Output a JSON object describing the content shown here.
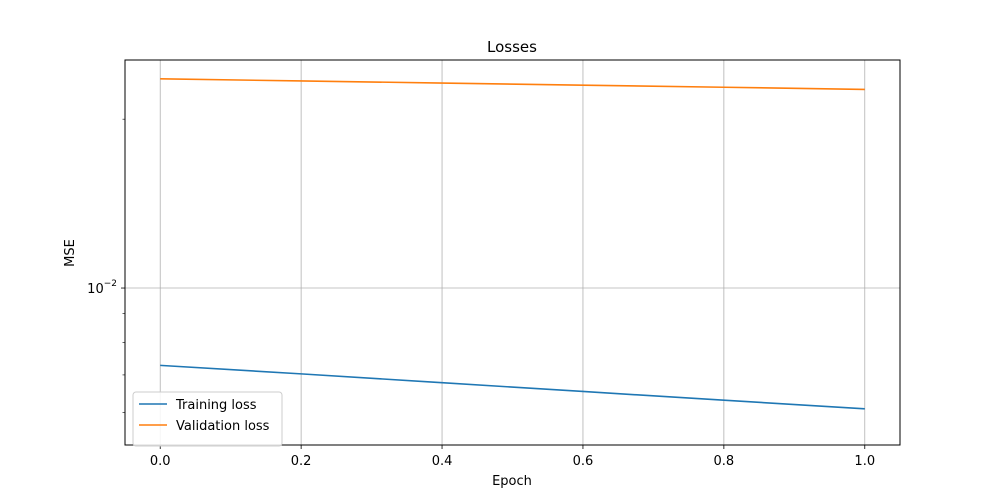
{
  "chart_data": {
    "type": "line",
    "title": "Losses",
    "xlabel": "Epoch",
    "ylabel": "MSE",
    "yscale": "log",
    "xlim": [
      -0.05,
      1.05
    ],
    "ylim": [
      0.00525,
      0.0255
    ],
    "x_ticks": [
      {
        "value": 0.0,
        "label": "0.0"
      },
      {
        "value": 0.2,
        "label": "0.2"
      },
      {
        "value": 0.4,
        "label": "0.4"
      },
      {
        "value": 0.6,
        "label": "0.6"
      },
      {
        "value": 0.8,
        "label": "0.8"
      },
      {
        "value": 1.0,
        "label": "1.0"
      }
    ],
    "y_major_ticks": [
      {
        "value": 0.01,
        "base": "10",
        "exponent": "−2"
      }
    ],
    "y_minor_ticks": [
      0.006,
      0.007,
      0.008,
      0.009,
      0.02
    ],
    "grid": true,
    "legend_position": "lower-left",
    "series": [
      {
        "name": "Training loss",
        "color": "#1f77b4",
        "x": [
          0.0,
          0.2,
          0.4,
          0.6,
          0.8,
          1.0
        ],
        "y": [
          0.00728,
          0.00703,
          0.00678,
          0.00654,
          0.00631,
          0.00609
        ]
      },
      {
        "name": "Validation loss",
        "color": "#ff7f0e",
        "x": [
          0.0,
          0.2,
          0.4,
          0.6,
          0.8,
          1.0
        ],
        "y": [
          0.0236,
          0.0234,
          0.0232,
          0.023,
          0.0228,
          0.0226
        ]
      }
    ]
  }
}
